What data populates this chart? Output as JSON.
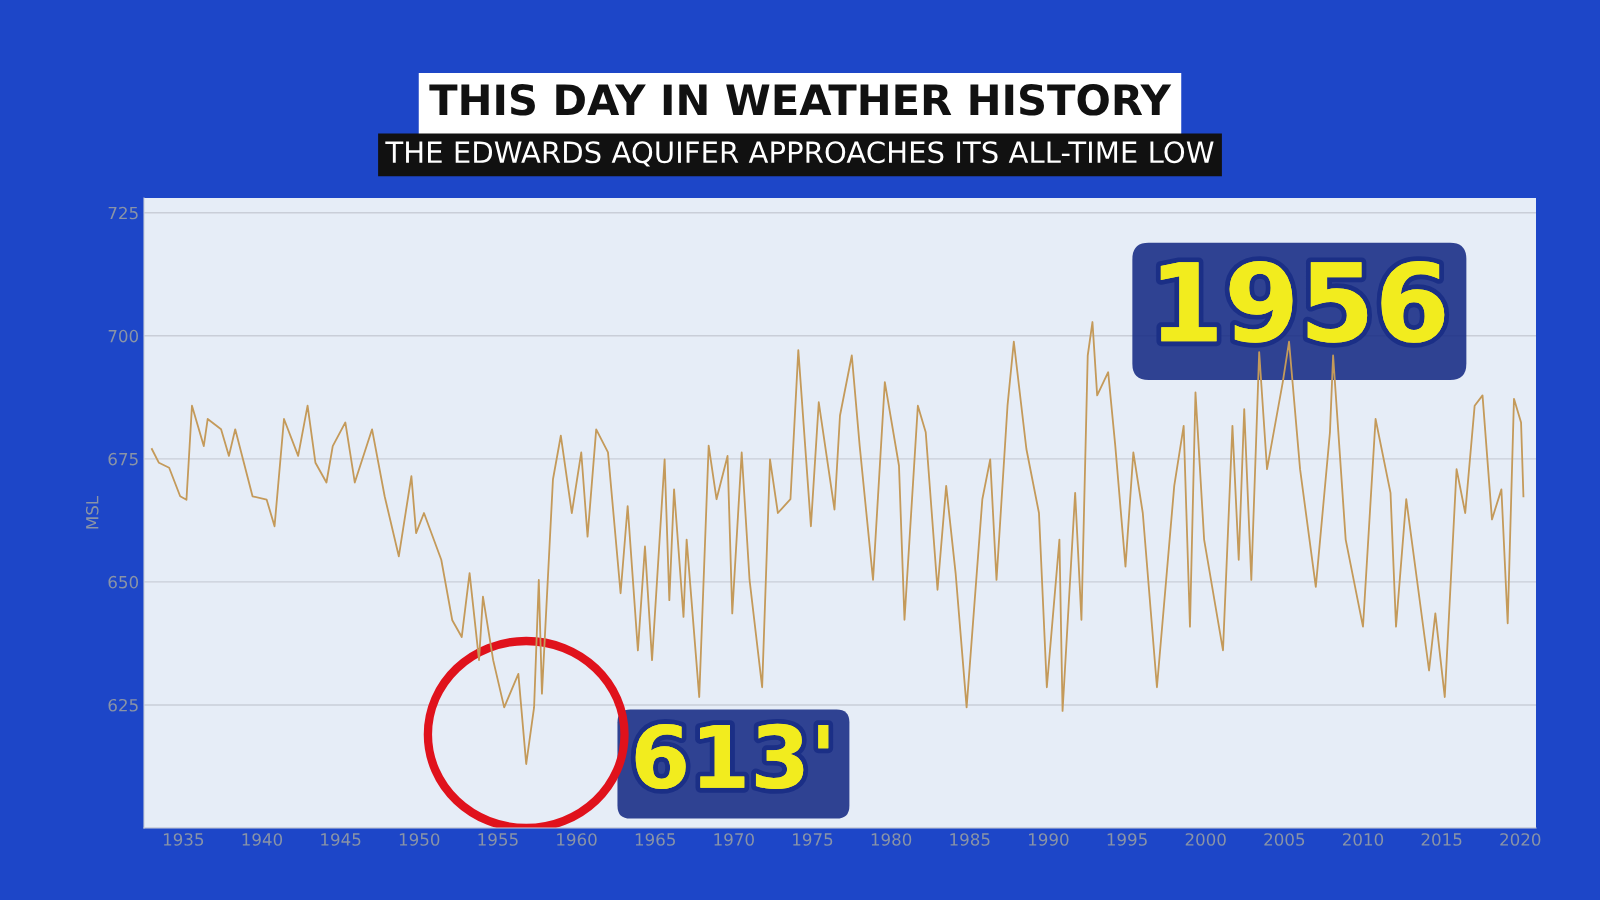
{
  "chart_data": {
    "type": "line",
    "title": "THIS DAY IN WEATHER HISTORY",
    "subtitle": "THE EDWARDS AQUIFER APPROACHES ITS ALL-TIME LOW",
    "ylabel": "MSL",
    "annotations": [
      "1956",
      {
        "text": "613'",
        "x": 1956.8,
        "y": 613
      }
    ],
    "x": [
      1933.0,
      1933.45,
      1934.1,
      1934.8,
      1935.2,
      1935.55,
      1936.3,
      1936.55,
      1937.4,
      1937.9,
      1938.3,
      1939.4,
      1940.3,
      1940.8,
      1941.4,
      1942.3,
      1942.9,
      1943.4,
      1944.1,
      1944.5,
      1945.3,
      1945.9,
      1947.0,
      1947.8,
      1948.7,
      1949.5,
      1949.8,
      1950.3,
      1951.4,
      1952.1,
      1952.7,
      1953.2,
      1953.8,
      1954.05,
      1954.7,
      1955.4,
      1956.3,
      1956.8,
      1957.3,
      1957.6,
      1957.8,
      1958.5,
      1959.0,
      1959.7,
      1960.3,
      1960.7,
      1961.25,
      1962.0,
      1962.8,
      1963.25,
      1963.9,
      1964.35,
      1964.8,
      1965.6,
      1965.9,
      1966.2,
      1966.8,
      1967.0,
      1967.8,
      1968.4,
      1968.9,
      1969.6,
      1969.9,
      1970.5,
      1971.0,
      1971.8,
      1972.3,
      1972.8,
      1973.6,
      1974.1,
      1974.9,
      1975.4,
      1976.4,
      1976.75,
      1977.5,
      1978.0,
      1978.85,
      1979.6,
      1980.5,
      1980.85,
      1981.7,
      1982.2,
      1982.95,
      1983.5,
      1984.1,
      1984.8,
      1985.8,
      1986.3,
      1986.7,
      1987.4,
      1987.8,
      1988.6,
      1989.4,
      1989.9,
      1990.7,
      1990.9,
      1991.7,
      1992.1,
      1992.5,
      1992.8,
      1993.1,
      1993.8,
      1994.25,
      1994.9,
      1995.4,
      1996.0,
      1996.9,
      1998.0,
      1998.6,
      1999.0,
      1999.35,
      1999.9,
      2001.1,
      2001.7,
      2002.1,
      2002.45,
      2002.9,
      2003.4,
      2003.9,
      2004.9,
      2005.3,
      2006.0,
      2007.0,
      2007.9,
      2008.1,
      2008.9,
      2010.0,
      2010.8,
      2011.75,
      2012.1,
      2012.75,
      2014.2,
      2014.6,
      2015.2,
      2015.95,
      2016.5,
      2017.1,
      2017.6,
      2018.2,
      2018.8,
      2019.2,
      2019.6,
      2020.05,
      2020.2
    ],
    "series": [
      {
        "color": "#c49a5a",
        "values": [
          677.0,
          674.2,
          673.2,
          667.4,
          666.7,
          685.8,
          677.6,
          683.1,
          681.0,
          675.6,
          681.0,
          667.4,
          666.7,
          661.3,
          683.1,
          675.6,
          685.8,
          674.2,
          670.2,
          677.6,
          682.4,
          670.2,
          681.0,
          667.4,
          655.2,
          671.5,
          659.9,
          664.0,
          654.5,
          642.2,
          638.8,
          651.8,
          634.1,
          647.0,
          634.1,
          624.5,
          631.3,
          613,
          624.5,
          650.4,
          627.3,
          670.8,
          679.7,
          664.0,
          676.3,
          659.2,
          681.0,
          676.3,
          647.7,
          665.4,
          636.1,
          657.2,
          634.1,
          674.9,
          646.3,
          668.8,
          642.9,
          658.6,
          626.6,
          677.7,
          666.8,
          675.6,
          643.6,
          676.3,
          650.4,
          628.6,
          674.9,
          664.0,
          666.8,
          697.1,
          661.3,
          686.5,
          664.7,
          683.8,
          696.0,
          677.7,
          650.4,
          690.6,
          673.6,
          642.3,
          685.8,
          680.4,
          648.4,
          669.5,
          651.8,
          624.5,
          666.8,
          674.9,
          650.4,
          685.8,
          698.8,
          677.0,
          664.0,
          628.6,
          658.6,
          623.8,
          668.1,
          642.3,
          696.0,
          702.8,
          687.9,
          692.6,
          677.7,
          653.1,
          676.3,
          664.0,
          628.6,
          669.5,
          681.7,
          640.9,
          688.5,
          658.6,
          636.1,
          681.7,
          654.5,
          685.1,
          650.4,
          696.7,
          672.9,
          690.6,
          698.8,
          672.9,
          649.0,
          680.4,
          696.0,
          658.6,
          640.9,
          683.1,
          668.1,
          640.9,
          666.8,
          632.0,
          643.6,
          626.6,
          672.9,
          664.0,
          685.8,
          687.9,
          662.7,
          668.8,
          641.6,
          687.2,
          682.4,
          667.4
        ]
      }
    ],
    "xlim": [
      1932.5,
      2021
    ],
    "xticks": [
      1935,
      1940,
      1945,
      1950,
      1955,
      1960,
      1965,
      1970,
      1975,
      1980,
      1985,
      1990,
      1995,
      2000,
      2005,
      2010,
      2015,
      2020
    ],
    "ylim": [
      600,
      728
    ],
    "yticks": [
      {
        "value": 600,
        "label": null
      },
      625,
      650,
      675,
      700,
      725
    ],
    "grid": "y",
    "legend": false,
    "marker": "none",
    "line_style": "solid"
  }
}
